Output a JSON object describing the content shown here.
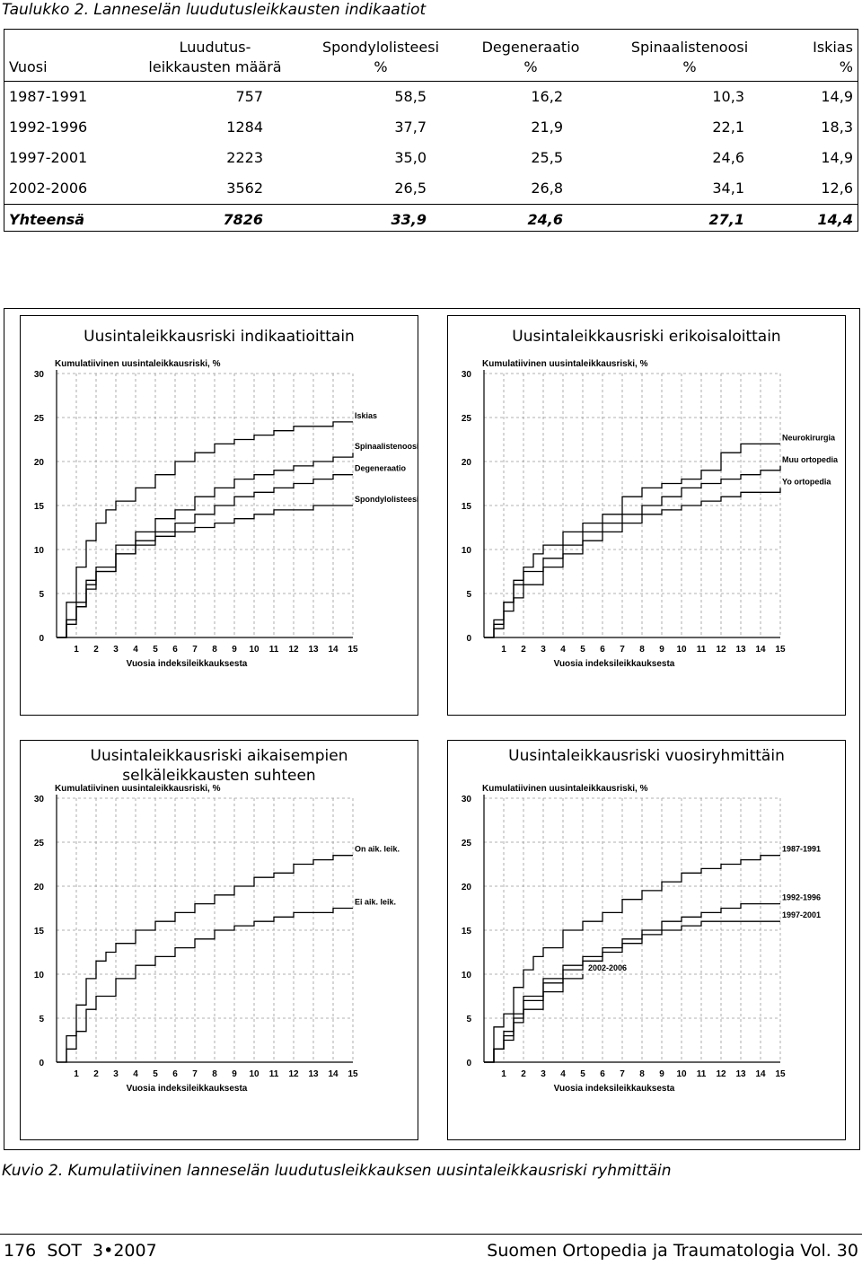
{
  "table_caption": "Taulukko 2. Lanneselän luudutusleikkausten indikaatiot",
  "table": {
    "headers": [
      "Vuosi",
      "Luudutus-\nleikkausten määrä",
      "Spondylolisteesi\n%",
      "Degeneraatio\n%",
      "Spinaalistenoosi\n%",
      "Iskias\n%"
    ],
    "rows": [
      [
        "1987-1991",
        "757",
        "58,5",
        "16,2",
        "10,3",
        "14,9"
      ],
      [
        "1992-1996",
        "1284",
        "37,7",
        "21,9",
        "22,1",
        "18,3"
      ],
      [
        "1997-2001",
        "2223",
        "35,0",
        "25,5",
        "24,6",
        "14,9"
      ],
      [
        "2002-2006",
        "3562",
        "26,5",
        "26,8",
        "34,1",
        "12,6"
      ]
    ],
    "total": [
      "Yhteensä",
      "7826",
      "33,9",
      "24,6",
      "27,1",
      "14,4"
    ]
  },
  "chart_data": [
    {
      "type": "line",
      "title": "Uusintaleikkausriski indikaatioittain",
      "ylabel": "Kumulatiivinen uusintaleikkausriski, %",
      "xlabel": "Vuosia indeksileikkauksesta",
      "xlim": [
        0,
        15
      ],
      "ylim": [
        0,
        30
      ],
      "xticks": [
        "1",
        "2",
        "3",
        "4",
        "5",
        "6",
        "7",
        "8",
        "9",
        "10",
        "11",
        "12",
        "13",
        "14",
        "15"
      ],
      "yticks": [
        "0",
        "5",
        "10",
        "15",
        "20",
        "25",
        "30"
      ],
      "grid": true,
      "series": [
        {
          "name": "Iskias",
          "x": [
            0,
            0.5,
            1,
            1.5,
            2,
            2.5,
            3,
            4,
            5,
            6,
            7,
            8,
            9,
            10,
            11,
            12,
            13,
            14,
            15
          ],
          "y": [
            0,
            4,
            8,
            11,
            13,
            14.5,
            15.5,
            17,
            18.5,
            20,
            21,
            22,
            22.5,
            23,
            23.5,
            24,
            24,
            24.5,
            24.5
          ]
        },
        {
          "name": "Spinaalistenoosi",
          "x": [
            0,
            0.5,
            1,
            1.5,
            2,
            3,
            4,
            5,
            6,
            7,
            8,
            9,
            10,
            11,
            12,
            13,
            14,
            15
          ],
          "y": [
            0,
            2,
            4,
            6.5,
            8,
            10.5,
            12,
            13.5,
            14.5,
            16,
            17,
            18,
            18.5,
            19,
            19.5,
            20,
            20.5,
            21
          ]
        },
        {
          "name": "Degeneraatio",
          "x": [
            0,
            0.5,
            1,
            1.5,
            2,
            3,
            4,
            5,
            6,
            7,
            8,
            9,
            10,
            11,
            12,
            13,
            14,
            15
          ],
          "y": [
            0,
            2,
            3.5,
            6,
            7.5,
            9.5,
            11,
            12,
            13,
            14,
            15,
            16,
            16.5,
            17,
            17.5,
            18,
            18.5,
            18.5
          ]
        },
        {
          "name": "Spondylolisteesi",
          "x": [
            0,
            0.5,
            1,
            1.5,
            2,
            3,
            4,
            5,
            6,
            7,
            8,
            9,
            10,
            11,
            12,
            13,
            14,
            15
          ],
          "y": [
            0,
            1.5,
            3.5,
            5.5,
            7.5,
            9.5,
            10.5,
            11.5,
            12,
            12.5,
            13,
            13.5,
            14,
            14.5,
            14.5,
            15,
            15,
            15
          ]
        }
      ]
    },
    {
      "type": "line",
      "title": "Uusintaleikkausriski erikoisaloittain",
      "ylabel": "Kumulatiivinen uusintaleikkausriski, %",
      "xlabel": "Vuosia indeksileikkauksesta",
      "xlim": [
        0,
        15
      ],
      "ylim": [
        0,
        30
      ],
      "xticks": [
        "1",
        "2",
        "3",
        "4",
        "5",
        "6",
        "7",
        "8",
        "9",
        "10",
        "11",
        "12",
        "13",
        "14",
        "15"
      ],
      "yticks": [
        "0",
        "5",
        "10",
        "15",
        "20",
        "25",
        "30"
      ],
      "grid": true,
      "series": [
        {
          "name": "Neurokirurgia",
          "x": [
            0,
            0.5,
            1,
            1.5,
            2,
            2.5,
            3,
            4,
            5,
            6,
            7,
            8,
            9,
            10,
            11,
            12,
            13,
            14,
            15
          ],
          "y": [
            0,
            2,
            4,
            6.5,
            8,
            9.5,
            10.5,
            12,
            13,
            14,
            16,
            17,
            17.5,
            18,
            19,
            21,
            22,
            22,
            22
          ]
        },
        {
          "name": "Muu ortopedia",
          "x": [
            0,
            0.5,
            1,
            1.5,
            2,
            3,
            4,
            5,
            6,
            7,
            8,
            9,
            10,
            11,
            12,
            13,
            14,
            15
          ],
          "y": [
            0,
            1.5,
            4,
            6,
            7.5,
            9,
            10.5,
            12,
            13,
            14,
            15,
            16,
            17,
            17.5,
            18,
            18.5,
            19,
            19.5
          ]
        },
        {
          "name": "Yo ortopedia",
          "x": [
            0,
            0.5,
            1,
            1.5,
            2,
            3,
            4,
            5,
            6,
            7,
            8,
            9,
            10,
            11,
            12,
            13,
            14,
            15
          ],
          "y": [
            0,
            1,
            3,
            4.5,
            6,
            8,
            9.5,
            11,
            12,
            13,
            14,
            14.5,
            15,
            15.5,
            16,
            16.5,
            16.5,
            17
          ]
        }
      ]
    },
    {
      "type": "line",
      "title": "Uusintaleikkausriski aikaisempien selkäleikkausten suhteen",
      "ylabel": "Kumulatiivinen uusintaleikkausriski, %",
      "xlabel": "Vuosia indeksileikkauksesta",
      "xlim": [
        0,
        15
      ],
      "ylim": [
        0,
        30
      ],
      "xticks": [
        "1",
        "2",
        "3",
        "4",
        "5",
        "6",
        "7",
        "8",
        "9",
        "10",
        "11",
        "12",
        "13",
        "14",
        "15"
      ],
      "yticks": [
        "0",
        "5",
        "10",
        "15",
        "20",
        "25",
        "30"
      ],
      "grid": true,
      "series": [
        {
          "name": "On aik. leik.",
          "x": [
            0,
            0.5,
            1,
            1.5,
            2,
            2.5,
            3,
            4,
            5,
            6,
            7,
            8,
            9,
            10,
            11,
            12,
            13,
            14,
            15
          ],
          "y": [
            0,
            3,
            6.5,
            9.5,
            11.5,
            12.5,
            13.5,
            15,
            16,
            17,
            18,
            19,
            20,
            21,
            21.5,
            22.5,
            23,
            23.5,
            23.5
          ]
        },
        {
          "name": "Ei aik. leik.",
          "x": [
            0,
            0.5,
            1,
            1.5,
            2,
            3,
            4,
            5,
            6,
            7,
            8,
            9,
            10,
            11,
            12,
            13,
            14,
            15
          ],
          "y": [
            0,
            1.5,
            3.5,
            6,
            7.5,
            9.5,
            11,
            12,
            13,
            14,
            15,
            15.5,
            16,
            16.5,
            17,
            17,
            17.5,
            17.5
          ]
        }
      ]
    },
    {
      "type": "line",
      "title": "Uusintaleikkausriski vuosiryhmittäin",
      "ylabel": "Kumulatiivinen uusintaleikkausriski, %",
      "xlabel": "Vuosia indeksileikkauksesta",
      "xlim": [
        0,
        15
      ],
      "ylim": [
        0,
        30
      ],
      "xticks": [
        "1",
        "2",
        "3",
        "4",
        "5",
        "6",
        "7",
        "8",
        "9",
        "10",
        "11",
        "12",
        "13",
        "14",
        "15"
      ],
      "yticks": [
        "0",
        "5",
        "10",
        "15",
        "20",
        "25",
        "30"
      ],
      "grid": true,
      "series": [
        {
          "name": "1987-1991",
          "x": [
            0,
            0.5,
            1,
            1.5,
            2,
            2.5,
            3,
            4,
            5,
            6,
            7,
            8,
            9,
            10,
            11,
            12,
            13,
            14,
            15
          ],
          "y": [
            0,
            4,
            5.5,
            8.5,
            10.5,
            12,
            13,
            15,
            16,
            17,
            18.5,
            19.5,
            20.5,
            21.5,
            22,
            22.5,
            23,
            23.5,
            23.5
          ]
        },
        {
          "name": "1992-1996",
          "x": [
            0,
            0.5,
            1,
            1.5,
            2,
            3,
            4,
            5,
            6,
            7,
            8,
            9,
            10,
            11,
            12,
            13,
            14,
            15
          ],
          "y": [
            0,
            1.5,
            3.5,
            5.5,
            7.5,
            9.5,
            11,
            12,
            13,
            14,
            15,
            16,
            16.5,
            17,
            17.5,
            18,
            18,
            18
          ]
        },
        {
          "name": "1997-2001",
          "x": [
            0,
            0.5,
            1,
            1.5,
            2,
            3,
            4,
            5,
            6,
            7,
            8,
            9,
            10,
            11,
            12,
            13,
            14,
            15
          ],
          "y": [
            0,
            1.5,
            3,
            5,
            7,
            9,
            10.5,
            11.5,
            12.5,
            13.5,
            14.5,
            15,
            15.5,
            16,
            16,
            16,
            16,
            16
          ]
        },
        {
          "name": "2002-2006",
          "x": [
            0,
            0.5,
            1,
            1.5,
            2,
            3,
            4,
            5
          ],
          "y": [
            0,
            1.5,
            2.5,
            4.5,
            6,
            8,
            9.5,
            10
          ]
        }
      ]
    }
  ],
  "figure_caption": "Kuvio 2. Kumulatiivinen lanneselän luudutusleikkauksen uusintaleikkausriski ryhmittäin",
  "footer": {
    "left": "176  SOT  3•2007",
    "right": "Suomen Ortopedia ja Traumatologia Vol. 30"
  }
}
